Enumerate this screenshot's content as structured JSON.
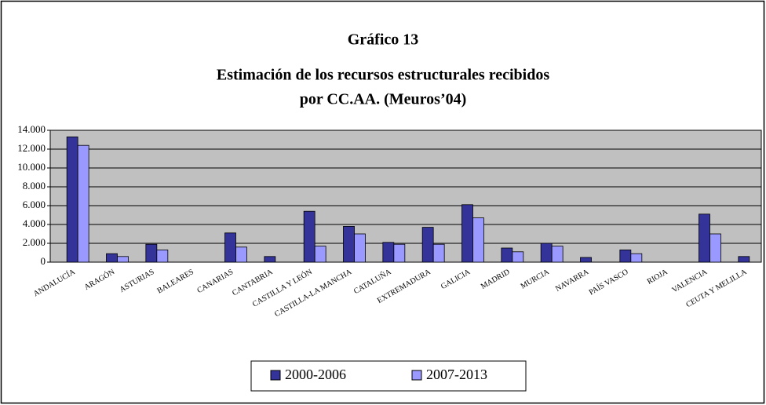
{
  "chart_data": {
    "type": "bar",
    "title": "Gráfico 13",
    "subtitle": [
      "Estimación de los recursos estructurales recibidos",
      "por CC.AA. (Meuros’04)"
    ],
    "categories": [
      "ANDALUCÍA",
      "ARAGÓN",
      "ASTURIAS",
      "BALEARES",
      "CANARIAS",
      "CANTABRIA",
      "CASTILLA Y LEÓN",
      "CASTILLA-LA MANCHA",
      "CATALUÑA",
      "EXTREMADURA",
      "GALICIA",
      "MADRID",
      "MURCIA",
      "NAVARRA",
      "PAÍS VASCO",
      "RIOJA",
      "VALENCIA",
      "CEUTA Y MELILLA"
    ],
    "series": [
      {
        "name": "2000-2006",
        "color": "#333399",
        "values": [
          13300,
          900,
          1900,
          0,
          3100,
          600,
          5400,
          3800,
          2100,
          3700,
          6100,
          1500,
          2000,
          500,
          1300,
          0,
          5100,
          600
        ]
      },
      {
        "name": "2007-2013",
        "color": "#9999ff",
        "values": [
          12400,
          600,
          1300,
          0,
          1600,
          0,
          1700,
          3000,
          1900,
          1900,
          4700,
          1100,
          1700,
          0,
          900,
          0,
          3000,
          0
        ]
      }
    ],
    "ylim": [
      0,
      14000
    ],
    "yticks": [
      0,
      {
        "value": 2000,
        "label": "2.000"
      },
      {
        "value": 4000,
        "label": "4.000"
      },
      {
        "value": 6000,
        "label": "6.000"
      },
      {
        "value": 8000,
        "label": "8.000"
      },
      {
        "value": 10000,
        "label": "10.000"
      },
      {
        "value": 12000,
        "label": "12.000"
      },
      {
        "value": 14000,
        "label": "14.000"
      }
    ],
    "grid": true,
    "legend": "bottom"
  }
}
